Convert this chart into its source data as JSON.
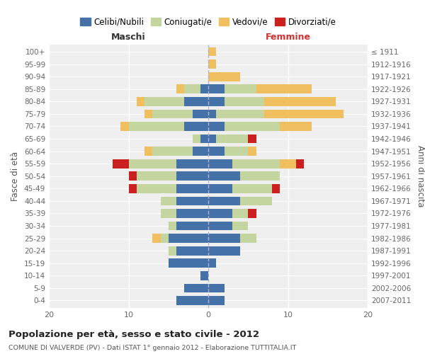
{
  "age_groups": [
    "0-4",
    "5-9",
    "10-14",
    "15-19",
    "20-24",
    "25-29",
    "30-34",
    "35-39",
    "40-44",
    "45-49",
    "50-54",
    "55-59",
    "60-64",
    "65-69",
    "70-74",
    "75-79",
    "80-84",
    "85-89",
    "90-94",
    "95-99",
    "100+"
  ],
  "birth_years": [
    "2007-2011",
    "2002-2006",
    "1997-2001",
    "1992-1996",
    "1987-1991",
    "1982-1986",
    "1977-1981",
    "1972-1976",
    "1967-1971",
    "1962-1966",
    "1957-1961",
    "1952-1956",
    "1947-1951",
    "1942-1946",
    "1937-1941",
    "1932-1936",
    "1927-1931",
    "1922-1926",
    "1917-1921",
    "1912-1916",
    "≤ 1911"
  ],
  "colors": {
    "celibi": "#4472a8",
    "coniugati": "#c5d5a0",
    "vedovi": "#f0c060",
    "divorziati": "#cc2020"
  },
  "maschi": {
    "celibi": [
      4,
      3,
      1,
      5,
      4,
      5,
      4,
      4,
      4,
      4,
      4,
      4,
      2,
      1,
      3,
      2,
      3,
      1,
      0,
      0,
      0
    ],
    "coniugati": [
      0,
      0,
      0,
      0,
      1,
      1,
      1,
      2,
      2,
      5,
      5,
      6,
      5,
      1,
      7,
      5,
      5,
      2,
      0,
      0,
      0
    ],
    "vedovi": [
      0,
      0,
      0,
      0,
      0,
      1,
      0,
      0,
      0,
      0,
      0,
      0,
      1,
      0,
      1,
      1,
      1,
      1,
      0,
      0,
      0
    ],
    "divorziati": [
      0,
      0,
      0,
      0,
      0,
      0,
      0,
      0,
      0,
      1,
      1,
      2,
      0,
      0,
      0,
      0,
      0,
      0,
      0,
      0,
      0
    ]
  },
  "femmine": {
    "celibi": [
      2,
      2,
      0,
      1,
      4,
      4,
      3,
      3,
      4,
      3,
      4,
      3,
      2,
      1,
      2,
      1,
      2,
      2,
      0,
      0,
      0
    ],
    "coniugati": [
      0,
      0,
      0,
      0,
      0,
      2,
      2,
      2,
      4,
      5,
      5,
      6,
      3,
      4,
      7,
      6,
      5,
      4,
      0,
      0,
      0
    ],
    "vedovi": [
      0,
      0,
      0,
      0,
      0,
      0,
      0,
      0,
      0,
      0,
      0,
      2,
      1,
      0,
      4,
      10,
      9,
      7,
      4,
      1,
      1
    ],
    "divorziati": [
      0,
      0,
      0,
      0,
      0,
      0,
      0,
      1,
      0,
      1,
      0,
      1,
      0,
      1,
      0,
      0,
      0,
      0,
      0,
      0,
      0
    ]
  },
  "xlim": 20,
  "title": "Popolazione per età, sesso e stato civile - 2012",
  "subtitle": "COMUNE DI VALVERDE (PV) - Dati ISTAT 1° gennaio 2012 - Elaborazione TUTTITALIA.IT",
  "ylabel_left": "Fasce di età",
  "ylabel_right": "Anni di nascita",
  "header_left": "Maschi",
  "header_right": "Femmine",
  "legend_labels": [
    "Celibi/Nubili",
    "Coniugati/e",
    "Vedovi/e",
    "Divorziati/e"
  ],
  "bg_color": "#ffffff",
  "plot_bg": "#efefef"
}
